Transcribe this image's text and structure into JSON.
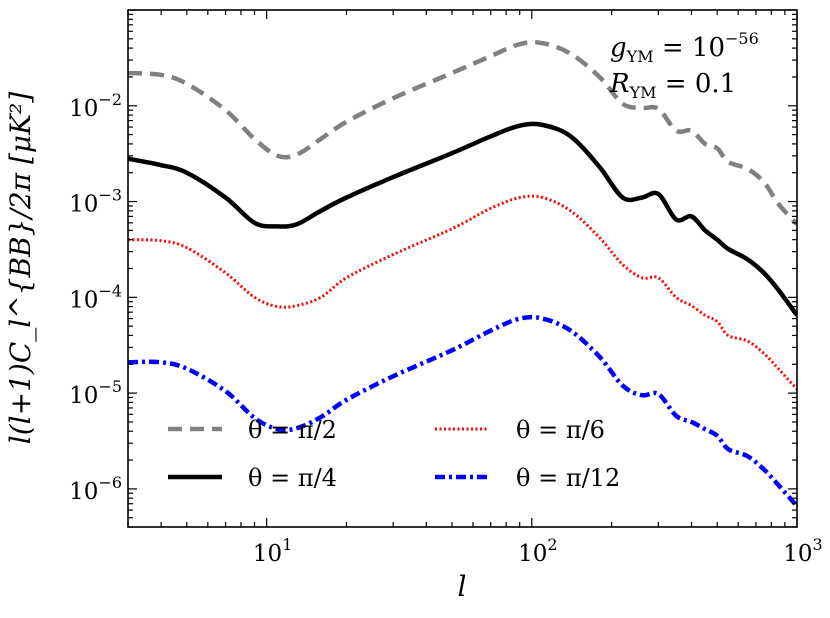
{
  "chart_data": {
    "type": "line",
    "xscale": "log",
    "yscale": "log",
    "xlim": [
      3,
      1000
    ],
    "ylim": [
      4e-07,
      0.1
    ],
    "xlabel": "l",
    "ylabel": "l(l+1)C_l^{BB}/2π  [μK²]",
    "xticks": [
      {
        "value": 10,
        "base": "10",
        "exp": "1"
      },
      {
        "value": 100,
        "base": "10",
        "exp": "2"
      },
      {
        "value": 1000,
        "base": "10",
        "exp": "3"
      }
    ],
    "yticks": [
      {
        "value": 1e-06,
        "base": "10",
        "exp": "−6"
      },
      {
        "value": 1e-05,
        "base": "10",
        "exp": "−5"
      },
      {
        "value": 0.0001,
        "base": "10",
        "exp": "−4"
      },
      {
        "value": 0.001,
        "base": "10",
        "exp": "−3"
      },
      {
        "value": 0.01,
        "base": "10",
        "exp": "−2"
      }
    ],
    "annotations": {
      "g_label": "g",
      "g_sub": "YM",
      "g_eq": " = 10",
      "g_exp": "−56",
      "r_label": "R",
      "r_sub": "YM",
      "r_eq": " = 0.1"
    },
    "legend_position": "lower-left, two columns",
    "series": [
      {
        "name": "θ = π/2",
        "color": "#808080",
        "style": "dashed",
        "points": [
          [
            3,
            0.022
          ],
          [
            4,
            0.021
          ],
          [
            5,
            0.017
          ],
          [
            7,
            0.009
          ],
          [
            9,
            0.0045
          ],
          [
            11,
            0.003
          ],
          [
            13,
            0.0031
          ],
          [
            16,
            0.0045
          ],
          [
            20,
            0.0068
          ],
          [
            30,
            0.012
          ],
          [
            50,
            0.022
          ],
          [
            70,
            0.033
          ],
          [
            90,
            0.044
          ],
          [
            110,
            0.045
          ],
          [
            140,
            0.035
          ],
          [
            180,
            0.02
          ],
          [
            220,
            0.0105
          ],
          [
            260,
            0.0095
          ],
          [
            300,
            0.0093
          ],
          [
            350,
            0.0055
          ],
          [
            400,
            0.0055
          ],
          [
            450,
            0.004
          ],
          [
            500,
            0.0036
          ],
          [
            550,
            0.0026
          ],
          [
            650,
            0.0022
          ],
          [
            750,
            0.0016
          ],
          [
            850,
            0.00095
          ],
          [
            1000,
            0.00058
          ]
        ]
      },
      {
        "name": "θ = π/4",
        "color": "#000000",
        "style": "solid",
        "points": [
          [
            3,
            0.0028
          ],
          [
            4,
            0.0024
          ],
          [
            5,
            0.002
          ],
          [
            7,
            0.0011
          ],
          [
            9,
            0.0006
          ],
          [
            11,
            0.00055
          ],
          [
            13,
            0.00058
          ],
          [
            16,
            0.0008
          ],
          [
            20,
            0.0011
          ],
          [
            30,
            0.0018
          ],
          [
            50,
            0.0032
          ],
          [
            70,
            0.0048
          ],
          [
            90,
            0.0062
          ],
          [
            110,
            0.0063
          ],
          [
            140,
            0.0048
          ],
          [
            180,
            0.0023
          ],
          [
            220,
            0.0011
          ],
          [
            260,
            0.0011
          ],
          [
            300,
            0.0012
          ],
          [
            350,
            0.00065
          ],
          [
            400,
            0.0007
          ],
          [
            450,
            0.0005
          ],
          [
            500,
            0.0004
          ],
          [
            550,
            0.00032
          ],
          [
            650,
            0.00025
          ],
          [
            750,
            0.00018
          ],
          [
            850,
            0.00012
          ],
          [
            1000,
            6.5e-05
          ]
        ]
      },
      {
        "name": "θ = π/6",
        "color": "#ff0000",
        "style": "dotted",
        "points": [
          [
            3,
            0.0004
          ],
          [
            4,
            0.00039
          ],
          [
            5,
            0.00033
          ],
          [
            7,
            0.00018
          ],
          [
            9,
            0.0001
          ],
          [
            11,
            8e-05
          ],
          [
            13,
            8.2e-05
          ],
          [
            16,
            0.0001
          ],
          [
            20,
            0.00016
          ],
          [
            30,
            0.00028
          ],
          [
            50,
            0.00052
          ],
          [
            70,
            0.00085
          ],
          [
            90,
            0.0011
          ],
          [
            110,
            0.0011
          ],
          [
            140,
            0.0008
          ],
          [
            180,
            0.00042
          ],
          [
            220,
            0.00022
          ],
          [
            260,
            0.00016
          ],
          [
            300,
            0.00016
          ],
          [
            350,
            0.0001
          ],
          [
            400,
            8.2e-05
          ],
          [
            450,
            6.5e-05
          ],
          [
            500,
            5.6e-05
          ],
          [
            550,
            4e-05
          ],
          [
            650,
            3.5e-05
          ],
          [
            750,
            2.6e-05
          ],
          [
            850,
            1.8e-05
          ],
          [
            1000,
            1.1e-05
          ]
        ]
      },
      {
        "name": "θ = π/12",
        "color": "#0000ff",
        "style": "dashdot",
        "points": [
          [
            3,
            2.1e-05
          ],
          [
            4,
            2.1e-05
          ],
          [
            5,
            1.8e-05
          ],
          [
            7,
            1.05e-05
          ],
          [
            9,
            5.5e-06
          ],
          [
            11,
            4.2e-06
          ],
          [
            13,
            4.3e-06
          ],
          [
            16,
            5.6e-06
          ],
          [
            20,
            8.5e-06
          ],
          [
            30,
            1.5e-05
          ],
          [
            50,
            2.8e-05
          ],
          [
            70,
            4.5e-05
          ],
          [
            90,
            6e-05
          ],
          [
            110,
            6e-05
          ],
          [
            140,
            4.5e-05
          ],
          [
            180,
            2.4e-05
          ],
          [
            220,
            1.2e-05
          ],
          [
            260,
            9.5e-06
          ],
          [
            300,
            9.8e-06
          ],
          [
            350,
            5.8e-06
          ],
          [
            400,
            5e-06
          ],
          [
            450,
            4.2e-06
          ],
          [
            500,
            3.6e-06
          ],
          [
            550,
            2.6e-06
          ],
          [
            650,
            2.2e-06
          ],
          [
            750,
            1.6e-06
          ],
          [
            850,
            1.1e-06
          ],
          [
            1000,
            6.6e-07
          ]
        ]
      }
    ]
  }
}
